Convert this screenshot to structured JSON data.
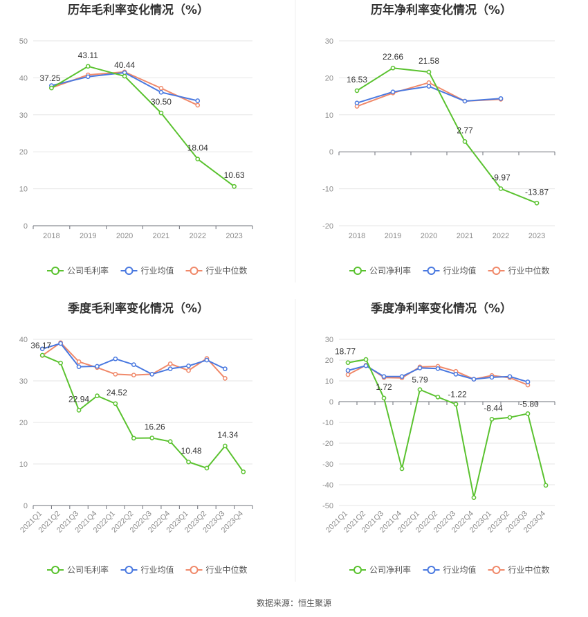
{
  "colors": {
    "company": "#5ac22f",
    "avg": "#4a79e0",
    "median": "#f0896a"
  },
  "source": "数据来源：恒生聚源",
  "chart_data": [
    {
      "type": "line",
      "title": "历年毛利率变化情况（%）",
      "categories": [
        "2018",
        "2019",
        "2020",
        "2021",
        "2022",
        "2023"
      ],
      "ylim": [
        0,
        50
      ],
      "yticks": [
        0,
        10,
        20,
        30,
        40,
        50
      ],
      "series": [
        {
          "name": "公司毛利率",
          "key": "company",
          "values": [
            37.25,
            43.11,
            40.44,
            30.5,
            18.04,
            10.63
          ]
        },
        {
          "name": "行业均值",
          "key": "avg",
          "values": [
            37.9,
            40.3,
            41.4,
            36.1,
            33.8,
            null
          ]
        },
        {
          "name": "行业中位数",
          "key": "median",
          "values": [
            37.3,
            40.8,
            41.6,
            37.2,
            32.6,
            null
          ]
        }
      ],
      "labels": [
        {
          "i": 0,
          "text": "37.25"
        },
        {
          "i": 1,
          "text": "43.11"
        },
        {
          "i": 2,
          "text": "40.44"
        },
        {
          "i": 3,
          "text": "30.50"
        },
        {
          "i": 4,
          "text": "18.04"
        },
        {
          "i": 5,
          "text": "10.63"
        }
      ]
    },
    {
      "type": "line",
      "title": "历年净利率变化情况（%）",
      "categories": [
        "2018",
        "2019",
        "2020",
        "2021",
        "2022",
        "2023"
      ],
      "ylim": [
        -20,
        30
      ],
      "yticks": [
        -20,
        -10,
        0,
        10,
        20,
        30
      ],
      "series": [
        {
          "name": "公司净利率",
          "key": "company",
          "values": [
            16.53,
            22.66,
            21.58,
            2.77,
            -9.97,
            -13.87
          ]
        },
        {
          "name": "行业均值",
          "key": "avg",
          "values": [
            13.2,
            16.2,
            17.7,
            13.7,
            14.4,
            null
          ]
        },
        {
          "name": "行业中位数",
          "key": "median",
          "values": [
            12.3,
            15.9,
            18.7,
            13.7,
            14.2,
            null
          ]
        }
      ],
      "labels": [
        {
          "i": 0,
          "text": "16.53"
        },
        {
          "i": 1,
          "text": "22.66"
        },
        {
          "i": 2,
          "text": "21.58"
        },
        {
          "i": 3,
          "text": "2.77"
        },
        {
          "i": 4,
          "text": "-9.97"
        },
        {
          "i": 5,
          "text": "-13.87"
        }
      ]
    },
    {
      "type": "line",
      "title": "季度毛利率变化情况（%）",
      "categories": [
        "2021Q1",
        "2021Q2",
        "2021Q3",
        "2021Q4",
        "2022Q1",
        "2022Q2",
        "2022Q3",
        "2022Q4",
        "2023Q1",
        "2023Q2",
        "2023Q3",
        "2023Q4"
      ],
      "ylim": [
        0,
        40
      ],
      "yticks": [
        0,
        10,
        20,
        30,
        40
      ],
      "rotated_ticks": true,
      "series": [
        {
          "name": "公司毛利率",
          "key": "company",
          "values": [
            36.17,
            34.3,
            22.94,
            26.4,
            24.52,
            16.2,
            16.26,
            15.4,
            10.48,
            9.0,
            14.34,
            8.1
          ]
        },
        {
          "name": "行业均值",
          "key": "avg",
          "values": [
            37.7,
            39.0,
            33.4,
            33.5,
            35.3,
            33.9,
            31.6,
            32.9,
            33.6,
            35.0,
            32.9,
            null
          ]
        },
        {
          "name": "行业中位数",
          "key": "median",
          "values": [
            36.1,
            39.2,
            34.6,
            33.2,
            31.6,
            31.4,
            31.6,
            34.1,
            32.5,
            35.4,
            30.6,
            null
          ]
        }
      ],
      "labels": [
        {
          "i": 0,
          "text": "36.17"
        },
        {
          "i": 2,
          "text": "22.94"
        },
        {
          "i": 4,
          "text": "24.52"
        },
        {
          "i": 6,
          "text": "16.26"
        },
        {
          "i": 8,
          "text": "10.48"
        },
        {
          "i": 10,
          "text": "14.34"
        }
      ]
    },
    {
      "type": "line",
      "title": "季度净利率变化情况（%）",
      "categories": [
        "2021Q1",
        "2021Q2",
        "2021Q3",
        "2021Q4",
        "2022Q1",
        "2022Q2",
        "2022Q3",
        "2022Q4",
        "2023Q1",
        "2023Q2",
        "2023Q3",
        "2023Q4"
      ],
      "ylim": [
        -50,
        30
      ],
      "yticks": [
        -50,
        -40,
        -30,
        -20,
        -10,
        0,
        10,
        20,
        30
      ],
      "rotated_ticks": true,
      "series": [
        {
          "name": "公司净利率",
          "key": "company",
          "values": [
            18.77,
            20.3,
            1.72,
            -32.3,
            5.79,
            2.2,
            -1.22,
            -46.2,
            -8.44,
            -7.6,
            -5.8,
            -40.3
          ]
        },
        {
          "name": "行业均值",
          "key": "avg",
          "values": [
            15.0,
            17.3,
            12.1,
            12.1,
            16.2,
            15.9,
            13.2,
            10.8,
            11.7,
            12.1,
            9.5,
            null
          ]
        },
        {
          "name": "行业中位数",
          "key": "median",
          "values": [
            13.0,
            17.5,
            11.6,
            11.4,
            16.7,
            17.0,
            14.6,
            10.8,
            12.6,
            11.5,
            8.0,
            null
          ]
        }
      ],
      "labels": [
        {
          "i": 0,
          "text": "18.77"
        },
        {
          "i": 2,
          "text": "1.72"
        },
        {
          "i": 4,
          "text": "5.79"
        },
        {
          "i": 6,
          "text": "-1.22"
        },
        {
          "i": 8,
          "text": "-8.44"
        },
        {
          "i": 10,
          "text": "-5.80"
        }
      ]
    }
  ]
}
